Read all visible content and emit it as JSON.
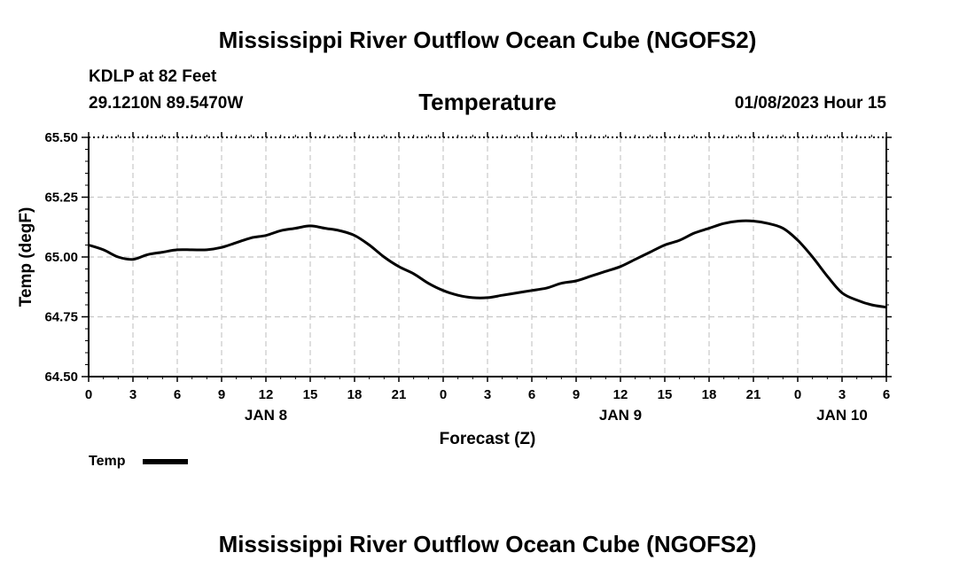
{
  "header": {
    "title": "Mississippi River Outflow Ocean Cube (NGOFS2)",
    "station": "KDLP at 82 Feet",
    "coords": "29.1210N  89.5470W",
    "parameter": "Temperature",
    "datetime": "01/08/2023 Hour 15"
  },
  "footer": {
    "title": "Mississippi River Outflow Ocean Cube (NGOFS2)"
  },
  "chart_data": {
    "type": "line",
    "title": "Temperature",
    "xlabel": "Forecast (Z)",
    "ylabel": "Temp (degF)",
    "xlim": [
      0,
      54
    ],
    "ylim": [
      64.5,
      65.5
    ],
    "grid": true,
    "x_ticks": [
      0,
      3,
      6,
      9,
      12,
      15,
      18,
      21,
      24,
      27,
      30,
      33,
      36,
      39,
      42,
      45,
      48,
      51,
      54
    ],
    "x_tick_labels": [
      "0",
      "3",
      "6",
      "9",
      "12",
      "15",
      "18",
      "21",
      "0",
      "3",
      "6",
      "9",
      "12",
      "15",
      "18",
      "21",
      "0",
      "3",
      "6"
    ],
    "y_ticks": [
      64.5,
      64.75,
      65.0,
      65.25,
      65.5
    ],
    "y_tick_labels": [
      "64.50",
      "64.75",
      "65.00",
      "65.25",
      "65.50"
    ],
    "date_labels": [
      {
        "x": 12,
        "label": "JAN 8"
      },
      {
        "x": 36,
        "label": "JAN 9"
      },
      {
        "x": 51,
        "label": "JAN 10"
      }
    ],
    "legend": {
      "label": "Temp",
      "position": "bottom-left"
    },
    "series": [
      {
        "name": "Temp",
        "x": [
          0,
          1,
          2,
          3,
          4,
          5,
          6,
          7,
          8,
          9,
          10,
          11,
          12,
          13,
          14,
          15,
          16,
          17,
          18,
          19,
          20,
          21,
          22,
          23,
          24,
          25,
          26,
          27,
          28,
          29,
          30,
          31,
          32,
          33,
          34,
          35,
          36,
          37,
          38,
          39,
          40,
          41,
          42,
          43,
          44,
          45,
          46,
          47,
          48,
          49,
          50,
          51,
          52,
          53,
          54
        ],
        "values": [
          65.05,
          65.03,
          65.0,
          64.99,
          65.01,
          65.02,
          65.03,
          65.03,
          65.03,
          65.04,
          65.06,
          65.08,
          65.09,
          65.11,
          65.12,
          65.13,
          65.12,
          65.11,
          65.09,
          65.05,
          65.0,
          64.96,
          64.93,
          64.89,
          64.86,
          64.84,
          64.83,
          64.83,
          64.84,
          64.85,
          64.86,
          64.87,
          64.89,
          64.9,
          64.92,
          64.94,
          64.96,
          64.99,
          65.02,
          65.05,
          65.07,
          65.1,
          65.12,
          65.14,
          65.15,
          65.15,
          65.14,
          65.12,
          65.07,
          65.0,
          64.92,
          64.85,
          64.82,
          64.8,
          64.79
        ]
      }
    ]
  }
}
